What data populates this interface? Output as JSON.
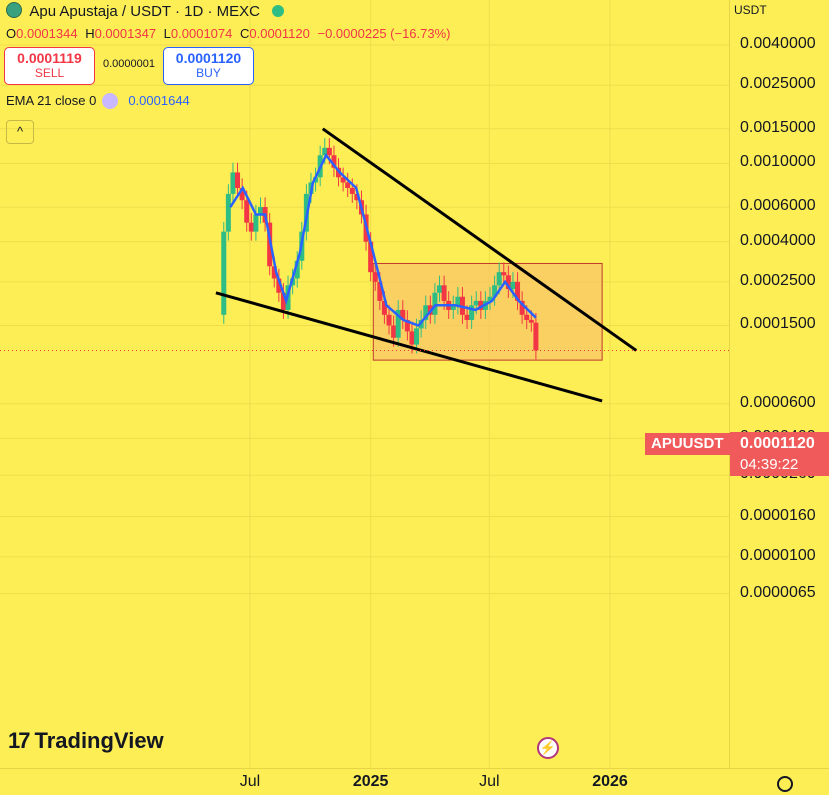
{
  "header": {
    "symbol_title": "Apu Apustaja / USDT · 1D · MEXC",
    "ohlc": {
      "o_label": "O",
      "o": "0.0001344",
      "h_label": "H",
      "h": "0.0001347",
      "l_label": "L",
      "l": "0.0001074",
      "c_label": "C",
      "c": "0.0001120",
      "change": "−0.0000225 (−16.73%)"
    }
  },
  "trade": {
    "sell_price": "0.0001119",
    "sell_label": "SELL",
    "spread": "0.0000001",
    "buy_price": "0.0001120",
    "buy_label": "BUY"
  },
  "indicator": {
    "label": "EMA 21 close 0",
    "value": "0.0001644",
    "color": "#2962ff"
  },
  "axis": {
    "currency": "USDT",
    "last_price": "0.0001120",
    "countdown": "04:39:22",
    "symbol_tag": "APUUSDT",
    "tag_color": "#f05a5a"
  },
  "branding": {
    "logo_text": "TradingView"
  },
  "icons": [
    "settings-icon",
    "flash-icon",
    "collapse-chevron-icon",
    "apu-logo-icon",
    "market-status-icon"
  ],
  "colors": {
    "background": "#fdee56",
    "up": "#2ebd85",
    "down": "#f23645",
    "ema": "#2962ff",
    "box_fill": "#f7c566",
    "box_border": "#c0392b"
  },
  "chart_data": {
    "type": "candlestick",
    "scale": "log",
    "x_ticks": [
      {
        "label": "Jul",
        "date": "2024-07-01"
      },
      {
        "label": "2025",
        "date": "2025-01-01"
      },
      {
        "label": "Jul",
        "date": "2025-07-01"
      },
      {
        "label": "2026",
        "date": "2026-01-01"
      }
    ],
    "y_ticks": [
      {
        "label": "0.0040000",
        "value": 0.004
      },
      {
        "label": "0.0025000",
        "value": 0.0025
      },
      {
        "label": "0.0015000",
        "value": 0.0015
      },
      {
        "label": "0.0010000",
        "value": 0.001
      },
      {
        "label": "0.0006000",
        "value": 0.0006
      },
      {
        "label": "0.0004000",
        "value": 0.0004
      },
      {
        "label": "0.0002500",
        "value": 0.00025
      },
      {
        "label": "0.0001500",
        "value": 0.00015
      },
      {
        "label": "0.0000600",
        "value": 6e-05
      },
      {
        "label": "0.0000400",
        "value": 4e-05
      },
      {
        "label": "0.0000260",
        "value": 2.6e-05
      },
      {
        "label": "0.0000160",
        "value": 1.6e-05
      },
      {
        "label": "0.0000100",
        "value": 1e-05
      },
      {
        "label": "0.0000065",
        "value": 6.5e-06
      }
    ],
    "price_series": [
      {
        "date": "2024-05-15",
        "close": 0.00017
      },
      {
        "date": "2024-05-22",
        "close": 0.00045
      },
      {
        "date": "2024-05-29",
        "close": 0.0007
      },
      {
        "date": "2024-06-05",
        "close": 0.0009
      },
      {
        "date": "2024-06-12",
        "close": 0.00075
      },
      {
        "date": "2024-06-19",
        "close": 0.00065
      },
      {
        "date": "2024-06-26",
        "close": 0.0005
      },
      {
        "date": "2024-07-03",
        "close": 0.00045
      },
      {
        "date": "2024-07-10",
        "close": 0.00055
      },
      {
        "date": "2024-07-17",
        "close": 0.0006
      },
      {
        "date": "2024-07-24",
        "close": 0.0005
      },
      {
        "date": "2024-07-31",
        "close": 0.0003
      },
      {
        "date": "2024-08-07",
        "close": 0.00026
      },
      {
        "date": "2024-08-14",
        "close": 0.00022
      },
      {
        "date": "2024-08-21",
        "close": 0.00018
      },
      {
        "date": "2024-08-28",
        "close": 0.00024
      },
      {
        "date": "2024-09-04",
        "close": 0.00026
      },
      {
        "date": "2024-09-11",
        "close": 0.00032
      },
      {
        "date": "2024-09-18",
        "close": 0.00045
      },
      {
        "date": "2024-09-25",
        "close": 0.0007
      },
      {
        "date": "2024-10-02",
        "close": 0.0008
      },
      {
        "date": "2024-10-09",
        "close": 0.00085
      },
      {
        "date": "2024-10-16",
        "close": 0.0011
      },
      {
        "date": "2024-10-23",
        "close": 0.0012
      },
      {
        "date": "2024-10-30",
        "close": 0.0011
      },
      {
        "date": "2024-11-06",
        "close": 0.00095
      },
      {
        "date": "2024-11-13",
        "close": 0.00085
      },
      {
        "date": "2024-11-20",
        "close": 0.0008
      },
      {
        "date": "2024-11-27",
        "close": 0.00075
      },
      {
        "date": "2024-12-04",
        "close": 0.0007
      },
      {
        "date": "2024-12-11",
        "close": 0.00065
      },
      {
        "date": "2024-12-18",
        "close": 0.00055
      },
      {
        "date": "2024-12-25",
        "close": 0.0004
      },
      {
        "date": "2025-01-01",
        "close": 0.00028
      },
      {
        "date": "2025-01-08",
        "close": 0.00025
      },
      {
        "date": "2025-01-15",
        "close": 0.0002
      },
      {
        "date": "2025-01-22",
        "close": 0.00017
      },
      {
        "date": "2025-01-29",
        "close": 0.00015
      },
      {
        "date": "2025-02-05",
        "close": 0.00013
      },
      {
        "date": "2025-02-12",
        "close": 0.00018
      },
      {
        "date": "2025-02-19",
        "close": 0.00016
      },
      {
        "date": "2025-02-26",
        "close": 0.00014
      },
      {
        "date": "2025-03-05",
        "close": 0.00012
      },
      {
        "date": "2025-03-12",
        "close": 0.000145
      },
      {
        "date": "2025-03-19",
        "close": 0.00016
      },
      {
        "date": "2025-03-26",
        "close": 0.00019
      },
      {
        "date": "2025-04-02",
        "close": 0.00017
      },
      {
        "date": "2025-04-09",
        "close": 0.00022
      },
      {
        "date": "2025-04-16",
        "close": 0.00024
      },
      {
        "date": "2025-04-23",
        "close": 0.0002
      },
      {
        "date": "2025-04-30",
        "close": 0.00018
      },
      {
        "date": "2025-05-07",
        "close": 0.00019
      },
      {
        "date": "2025-05-14",
        "close": 0.00021
      },
      {
        "date": "2025-05-21",
        "close": 0.00017
      },
      {
        "date": "2025-05-28",
        "close": 0.00016
      },
      {
        "date": "2025-06-04",
        "close": 0.00019
      },
      {
        "date": "2025-06-11",
        "close": 0.0002
      },
      {
        "date": "2025-06-18",
        "close": 0.00018
      },
      {
        "date": "2025-06-25",
        "close": 0.0002
      },
      {
        "date": "2025-07-02",
        "close": 0.00021
      },
      {
        "date": "2025-07-09",
        "close": 0.00024
      },
      {
        "date": "2025-07-16",
        "close": 0.00028
      },
      {
        "date": "2025-07-23",
        "close": 0.00027
      },
      {
        "date": "2025-07-30",
        "close": 0.00023
      },
      {
        "date": "2025-08-06",
        "close": 0.00025
      },
      {
        "date": "2025-08-13",
        "close": 0.0002
      },
      {
        "date": "2025-08-20",
        "close": 0.00017
      },
      {
        "date": "2025-08-27",
        "close": 0.00016
      },
      {
        "date": "2025-09-03",
        "close": 0.000155
      },
      {
        "date": "2025-09-10",
        "close": 0.000112
      }
    ],
    "ema_series": [
      {
        "date": "2024-06-01",
        "value": 0.0006
      },
      {
        "date": "2024-06-20",
        "value": 0.00075
      },
      {
        "date": "2024-07-10",
        "value": 0.00055
      },
      {
        "date": "2024-07-24",
        "value": 0.00055
      },
      {
        "date": "2024-08-10",
        "value": 0.00028
      },
      {
        "date": "2024-08-25",
        "value": 0.0002
      },
      {
        "date": "2024-09-15",
        "value": 0.00035
      },
      {
        "date": "2024-10-05",
        "value": 0.0008
      },
      {
        "date": "2024-10-25",
        "value": 0.0011
      },
      {
        "date": "2024-11-15",
        "value": 0.0009
      },
      {
        "date": "2024-12-10",
        "value": 0.00075
      },
      {
        "date": "2025-01-05",
        "value": 0.00035
      },
      {
        "date": "2025-01-25",
        "value": 0.00019
      },
      {
        "date": "2025-02-20",
        "value": 0.00016
      },
      {
        "date": "2025-03-15",
        "value": 0.00015
      },
      {
        "date": "2025-04-10",
        "value": 0.00019
      },
      {
        "date": "2025-05-10",
        "value": 0.00019
      },
      {
        "date": "2025-06-10",
        "value": 0.00018
      },
      {
        "date": "2025-07-05",
        "value": 0.0002
      },
      {
        "date": "2025-07-25",
        "value": 0.00025
      },
      {
        "date": "2025-08-15",
        "value": 0.0002
      },
      {
        "date": "2025-09-10",
        "value": 0.0001644
      }
    ],
    "trendlines": [
      {
        "from": {
          "date": "2024-05-10",
          "value": 0.00022
        },
        "to": {
          "date": "2025-12-20",
          "value": 6.2e-05
        }
      },
      {
        "from": {
          "date": "2024-10-20",
          "value": 0.0015
        },
        "to": {
          "date": "2026-02-10",
          "value": 0.000112
        }
      }
    ],
    "range_box": {
      "from": {
        "date": "2025-01-05",
        "value": 0.00031
      },
      "to": {
        "date": "2025-12-20",
        "value": 0.0001
      }
    },
    "last_price": 0.000112
  }
}
